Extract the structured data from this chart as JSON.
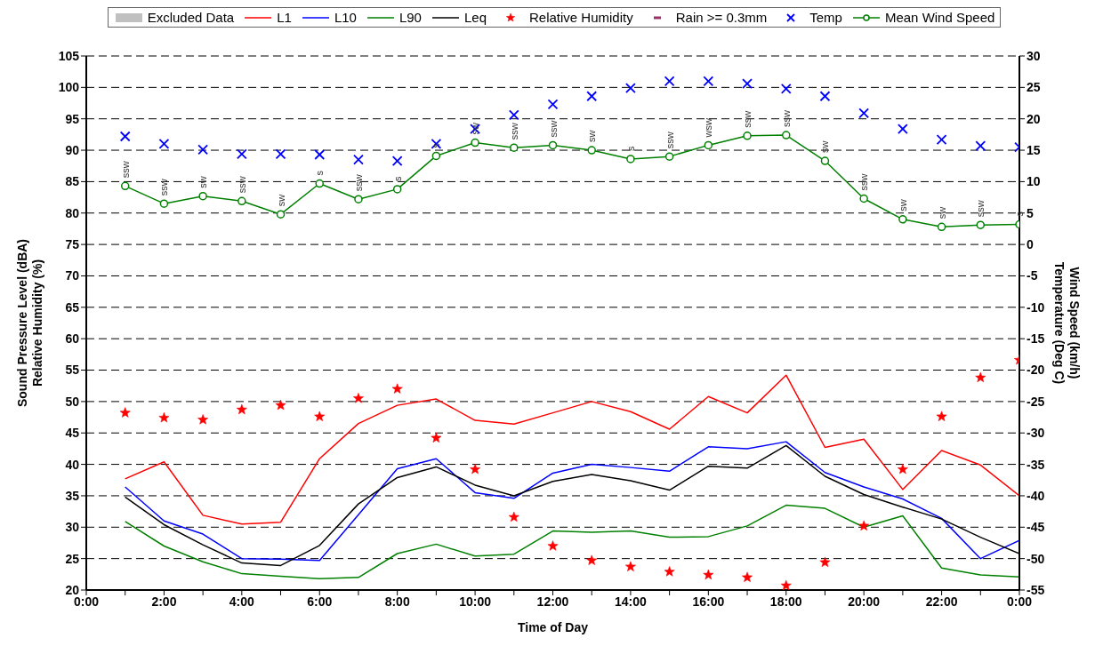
{
  "chart_data": {
    "type": "line",
    "xlabel": "Time of Day",
    "ylabel": "Sound Pressure Level (dBA)\nRelative Humidity (%)",
    "y2label": "Wind Speed (km/h)\nTemperature (Deg C)",
    "x": [
      1,
      2,
      3,
      4,
      5,
      6,
      7,
      8,
      9,
      10,
      11,
      12,
      13,
      14,
      15,
      16,
      17,
      18,
      19,
      20,
      21,
      22,
      23,
      24
    ],
    "xlim": [
      0,
      24
    ],
    "xticks": [
      {
        "value": 0,
        "label": "0:00"
      },
      {
        "value": 1,
        "label": null
      },
      {
        "value": 2,
        "label": "2:00"
      },
      {
        "value": 3,
        "label": null
      },
      {
        "value": 4,
        "label": "4:00"
      },
      {
        "value": 5,
        "label": null
      },
      {
        "value": 6,
        "label": "6:00"
      },
      {
        "value": 7,
        "label": null
      },
      {
        "value": 8,
        "label": "8:00"
      },
      {
        "value": 9,
        "label": null
      },
      {
        "value": 10,
        "label": "10:00"
      },
      {
        "value": 11,
        "label": null
      },
      {
        "value": 12,
        "label": "12:00"
      },
      {
        "value": 13,
        "label": null
      },
      {
        "value": 14,
        "label": "14:00"
      },
      {
        "value": 15,
        "label": null
      },
      {
        "value": 16,
        "label": "16:00"
      },
      {
        "value": 17,
        "label": null
      },
      {
        "value": 18,
        "label": "18:00"
      },
      {
        "value": 19,
        "label": null
      },
      {
        "value": 20,
        "label": "20:00"
      },
      {
        "value": 21,
        "label": null
      },
      {
        "value": 22,
        "label": "22:00"
      },
      {
        "value": 23,
        "label": null
      },
      {
        "value": 24,
        "label": "0:00"
      }
    ],
    "ylim": [
      20,
      105
    ],
    "yticks": [
      20,
      25,
      30,
      35,
      40,
      45,
      50,
      55,
      60,
      65,
      70,
      75,
      80,
      85,
      90,
      95,
      100,
      105
    ],
    "y2lim": [
      -55,
      30
    ],
    "y2ticks": [
      -55,
      -50,
      -45,
      -40,
      -35,
      -30,
      -25,
      -20,
      -15,
      -10,
      -5,
      0,
      5,
      10,
      15,
      20,
      25,
      30
    ],
    "grid": "y",
    "legend": "top",
    "series": [
      {
        "name": "Excluded Data",
        "type": "bar",
        "color": "#c0c0c0",
        "values": [
          null,
          null,
          null,
          null,
          null,
          null,
          null,
          null,
          null,
          null,
          null,
          null,
          null,
          null,
          null,
          null,
          null,
          null,
          null,
          null,
          null,
          null,
          null,
          null
        ]
      },
      {
        "name": "L1",
        "color": "#ff0000",
        "marker": "none",
        "values": [
          37.7,
          40.4,
          31.9,
          30.5,
          30.8,
          40.9,
          46.5,
          49.4,
          50.4,
          47.0,
          46.4,
          48.2,
          50.0,
          48.4,
          45.6,
          50.8,
          48.2,
          54.2,
          42.7,
          44.0,
          36.0,
          42.2,
          39.9,
          35.0
        ]
      },
      {
        "name": "L10",
        "color": "#0000ff",
        "marker": "none",
        "values": [
          36.4,
          31.0,
          28.9,
          25.0,
          24.9,
          24.7,
          32.0,
          39.3,
          40.9,
          35.5,
          34.6,
          38.6,
          40.0,
          39.5,
          38.9,
          42.8,
          42.5,
          43.6,
          38.7,
          36.4,
          34.5,
          31.4,
          25.0,
          27.9
        ]
      },
      {
        "name": "L90",
        "color": "#008000",
        "marker": "none",
        "values": [
          30.9,
          27.0,
          24.5,
          22.6,
          22.2,
          21.8,
          22.0,
          25.8,
          27.3,
          25.4,
          25.7,
          29.4,
          29.2,
          29.4,
          28.4,
          28.5,
          30.2,
          33.5,
          33.0,
          30.0,
          31.8,
          23.5,
          22.4,
          22.1
        ]
      },
      {
        "name": "Leq",
        "color": "#000000",
        "marker": "none",
        "values": [
          34.8,
          30.4,
          27.2,
          24.3,
          23.9,
          27.1,
          33.7,
          37.9,
          39.6,
          36.7,
          35.0,
          37.3,
          38.4,
          37.4,
          35.9,
          39.7,
          39.4,
          43.0,
          38.1,
          35.2,
          33.2,
          31.3,
          28.4,
          25.8
        ]
      },
      {
        "name": "Relative Humidity",
        "type": "scatter",
        "color": "#ff0000",
        "marker": "star",
        "values": [
          48.2,
          47.4,
          47.1,
          48.7,
          49.4,
          47.6,
          50.5,
          52.0,
          44.2,
          39.2,
          31.6,
          27.0,
          24.7,
          23.7,
          22.9,
          22.4,
          22.0,
          20.7,
          24.4,
          30.2,
          39.2,
          47.6,
          53.8,
          56.6
        ]
      },
      {
        "name": "Rain >= 0.3mm",
        "type": "scatter",
        "color": "#993366",
        "values": [
          null,
          null,
          null,
          null,
          null,
          null,
          null,
          null,
          null,
          null,
          null,
          null,
          null,
          null,
          null,
          null,
          null,
          null,
          null,
          null,
          null,
          null,
          null,
          null
        ]
      },
      {
        "name": "Temp",
        "type": "scatter",
        "axis": "y2",
        "color": "#0000ff",
        "marker": "cross",
        "values": [
          17.2,
          16.0,
          15.1,
          14.4,
          14.4,
          14.3,
          13.5,
          13.3,
          16.0,
          18.4,
          20.6,
          22.3,
          23.6,
          24.9,
          26.0,
          26.0,
          25.6,
          24.8,
          23.6,
          20.9,
          18.4,
          16.7,
          15.7,
          15.5
        ]
      },
      {
        "name": "Mean Wind Speed",
        "axis": "y2",
        "color": "#008000",
        "marker": "circle",
        "values": [
          9.3,
          6.5,
          7.7,
          6.9,
          4.8,
          9.7,
          7.2,
          8.8,
          14.1,
          16.2,
          15.4,
          15.8,
          15.0,
          13.6,
          14.0,
          15.8,
          17.3,
          17.4,
          13.3,
          7.3,
          4.0,
          2.8,
          3.1,
          3.2
        ],
        "value_labels": [
          "ssw",
          "ssw",
          "sw",
          "ssw",
          "sw",
          "s",
          "ssw",
          "s",
          "s",
          "sw",
          "ssw",
          "ssw",
          "sw",
          "s",
          "ssw",
          "wsw",
          "ssw",
          "ssw",
          "sw",
          "ssw",
          "sw",
          "sw",
          "ssw",
          "s"
        ]
      }
    ]
  }
}
